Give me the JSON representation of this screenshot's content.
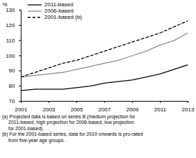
{
  "chart_data": {
    "type": "line",
    "y_label": "%",
    "x": [
      2001,
      2002,
      2003,
      2004,
      2005,
      2006,
      2007,
      2008,
      2009,
      2010,
      2011,
      2012,
      2013
    ],
    "series": [
      {
        "name": "2011-based",
        "color": "#000000",
        "line_style": "solid",
        "values": [
          77,
          78,
          78,
          78,
          79,
          80,
          82,
          83,
          84,
          86,
          88,
          91,
          94
        ]
      },
      {
        "name": "2006-based",
        "color": "#8c8c8c",
        "line_style": "solid",
        "values": [
          86,
          87,
          88,
          89,
          91,
          93,
          95,
          97,
          100,
          103,
          107,
          110,
          115
        ]
      },
      {
        "name": "2001-based (b)",
        "color": "#000000",
        "line_style": "dashed",
        "values": [
          86,
          89,
          92,
          95,
          97,
          100,
          103,
          106,
          109,
          112,
          115,
          119,
          123
        ]
      }
    ],
    "xlim": [
      2001,
      2013
    ],
    "xticks": [
      2001,
      2003,
      2005,
      2007,
      2009,
      2011,
      2013
    ],
    "ylim": [
      70,
      130
    ],
    "yticks": [
      70,
      80,
      90,
      100,
      110,
      120,
      130
    ],
    "legend": "top-left",
    "footnotes": [
      [
        "(a) Projected data is based on series B (medium projection for",
        "2011-based, high projection for 2006-based, low projection",
        "for 2001-based)."
      ],
      [
        "(b) For the 2001-based series, data for 2010 onwards is pro-rated",
        "from five-year age groups."
      ]
    ]
  }
}
